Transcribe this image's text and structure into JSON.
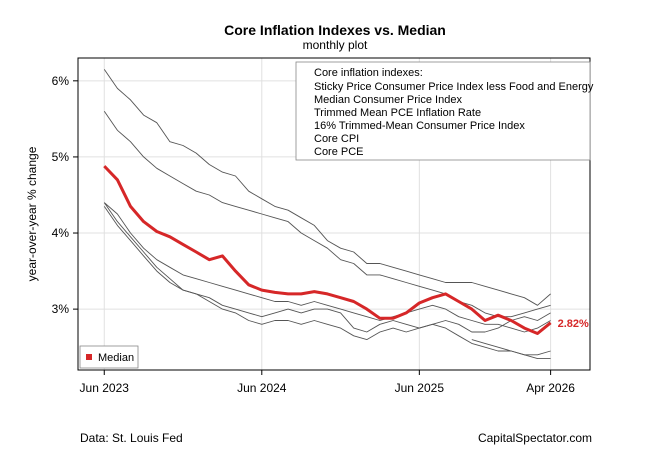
{
  "chart_data": {
    "type": "line",
    "title": "Core Inflation Indexes vs. Median",
    "subtitle": "monthly plot",
    "ylabel": "year-over-year % change",
    "xlabel": "",
    "ylim": [
      2.2,
      6.3
    ],
    "yticks": [
      3,
      4,
      5,
      6
    ],
    "ytick_labels": [
      "3%",
      "4%",
      "5%",
      "6%"
    ],
    "x_ticks": [
      0,
      12,
      24,
      34
    ],
    "xtick_labels": [
      "Jun 2023",
      "Jun 2024",
      "Jun 2025",
      "Apr 2026"
    ],
    "x_count": 35,
    "grid": true,
    "legend_box": {
      "heading": "Core inflation indexes:",
      "entries": [
        "Sticky Price Consumer Price Index less Food and Energy",
        "Median Consumer Price Index",
        "Trimmed Mean PCE Inflation Rate",
        "16% Trimmed-Mean Consumer Price Index",
        "Core CPI",
        "Core PCE"
      ],
      "placement": "top-right"
    },
    "median_legend": {
      "label": "Median",
      "placement": "bottom-left"
    },
    "median_end_label": "2.82%",
    "colors": {
      "median": "#d62728",
      "indexes": "#555555",
      "grid": "#e0e0e0"
    },
    "series": [
      {
        "values": [
          6.15,
          5.9,
          5.75,
          5.55,
          5.45,
          5.2,
          5.15,
          5.05,
          4.9,
          4.8,
          4.75,
          4.55,
          4.45,
          4.35,
          4.3,
          4.2,
          4.1,
          3.9,
          3.8,
          3.75,
          3.6,
          3.6,
          3.55,
          3.5,
          3.45,
          3.4,
          3.35,
          3.35,
          3.35,
          3.3,
          3.25,
          3.2,
          3.15,
          3.05,
          3.2
        ]
      },
      {
        "values": [
          5.6,
          5.35,
          5.2,
          5.0,
          4.85,
          4.75,
          4.65,
          4.55,
          4.5,
          4.4,
          4.35,
          4.3,
          4.25,
          4.2,
          4.15,
          4.0,
          3.9,
          3.8,
          3.65,
          3.6,
          3.45,
          3.45,
          3.4,
          3.35,
          3.3,
          3.25,
          3.2,
          3.1,
          3.05,
          2.95,
          2.9,
          2.9,
          2.95,
          3.0,
          3.05
        ]
      },
      {
        "values": [
          4.4,
          4.25,
          4.0,
          3.8,
          3.65,
          3.55,
          3.45,
          3.4,
          3.35,
          3.3,
          3.25,
          3.2,
          3.15,
          3.1,
          3.1,
          3.05,
          3.1,
          3.05,
          3.0,
          2.95,
          2.9,
          2.85,
          2.9,
          2.95,
          3.0,
          3.05,
          3.0,
          2.9,
          2.85,
          2.8,
          2.8,
          2.75,
          2.7,
          2.75,
          2.85
        ]
      },
      {
        "values": [
          4.35,
          4.1,
          3.9,
          3.7,
          3.5,
          3.35,
          3.25,
          3.2,
          3.15,
          3.05,
          3.0,
          2.95,
          2.9,
          2.95,
          3.0,
          2.95,
          3.0,
          3.0,
          2.95,
          2.75,
          2.7,
          2.8,
          2.85,
          2.8,
          2.75,
          2.8,
          2.85,
          2.8,
          2.7,
          2.7,
          2.75,
          2.85,
          2.9,
          2.85,
          2.95
        ]
      },
      {
        "values": [
          4.4,
          4.15,
          3.95,
          3.75,
          3.55,
          3.4,
          3.25,
          3.2,
          3.1,
          3.0,
          2.95,
          2.85,
          2.8,
          2.85,
          2.85,
          2.8,
          2.85,
          2.8,
          2.75,
          2.65,
          2.6,
          2.7,
          2.75,
          2.7,
          2.75,
          2.8,
          2.75,
          2.65,
          2.55,
          2.5,
          2.45,
          2.45,
          2.4,
          2.4,
          2.45
        ]
      },
      {
        "values": [
          null,
          null,
          null,
          null,
          null,
          null,
          null,
          null,
          null,
          null,
          null,
          null,
          null,
          null,
          null,
          null,
          null,
          null,
          null,
          null,
          null,
          null,
          null,
          null,
          null,
          null,
          null,
          null,
          2.6,
          2.55,
          2.5,
          2.45,
          2.4,
          2.35,
          2.35
        ]
      },
      {
        "name": "Median",
        "values": [
          4.88,
          4.7,
          4.35,
          4.15,
          4.02,
          3.95,
          3.85,
          3.75,
          3.65,
          3.7,
          3.5,
          3.32,
          3.25,
          3.22,
          3.2,
          3.2,
          3.23,
          3.2,
          3.15,
          3.1,
          3.0,
          2.88,
          2.88,
          2.95,
          3.08,
          3.15,
          3.2,
          3.1,
          3.0,
          2.85,
          2.92,
          2.85,
          2.75,
          2.68,
          2.82
        ]
      }
    ]
  },
  "footer": {
    "source": "Data: St. Louis Fed",
    "brand": "CapitalSpectator.com"
  }
}
